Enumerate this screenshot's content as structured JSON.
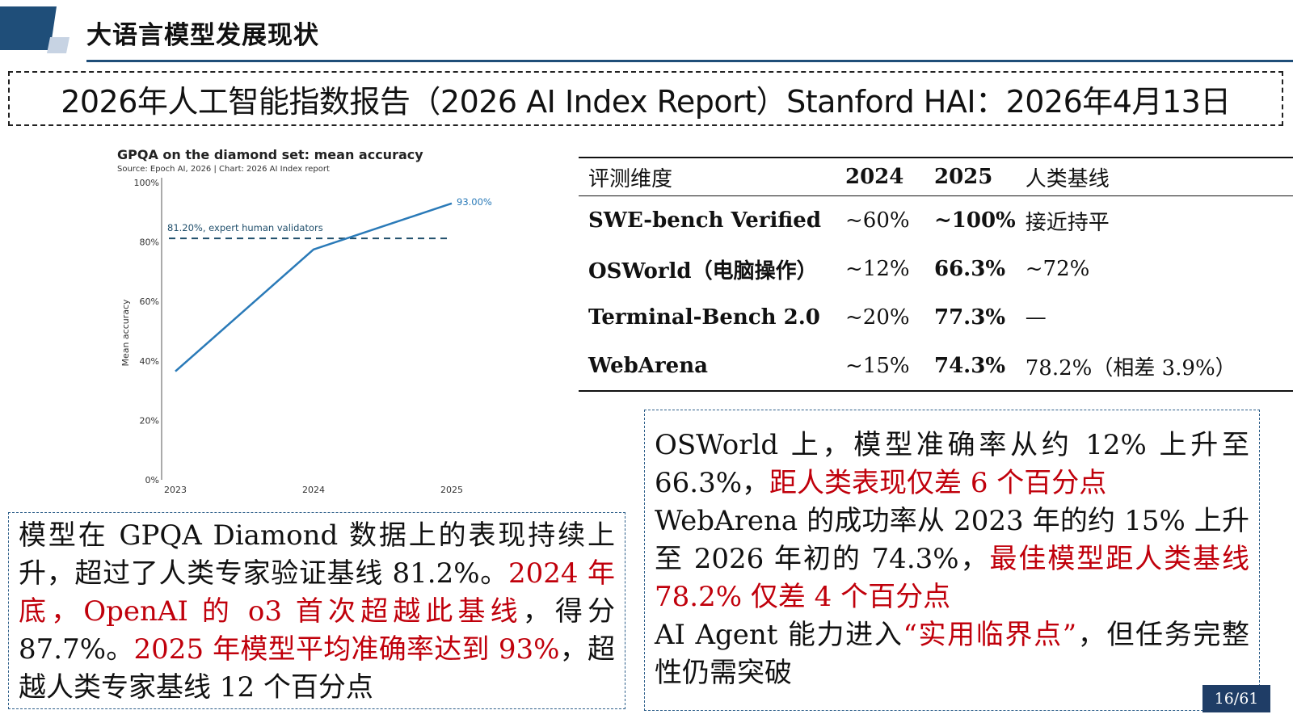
{
  "slide": {
    "title": "大语言模型发展现状",
    "page": "16/61",
    "accent_color": "#1f4e79"
  },
  "banner": {
    "text": "2026年人工智能指数报告（2026 AI Index Report）Stanford HAI：2026年4月13日"
  },
  "chart_data": {
    "type": "line",
    "title": "GPQA on the diamond set: mean accuracy",
    "subtitle": "Source: Epoch AI, 2026 | Chart: 2026 AI Index report",
    "ylabel": "Mean accuracy",
    "xlabel": "",
    "x": [
      "2023",
      "2024",
      "2025"
    ],
    "ylim": [
      0,
      100
    ],
    "yticks": [
      "0%",
      "20%",
      "40%",
      "60%",
      "80%",
      "100%"
    ],
    "series": [
      {
        "values": [
          36.5,
          77.5,
          93.0
        ],
        "color": "#2a7ab8"
      }
    ],
    "end_label": "93.00%",
    "reference": {
      "value": 81.2,
      "label": "81.20%, expert human validators",
      "color": "#1f4e6b"
    },
    "grid": false
  },
  "table": {
    "headers": [
      "评测维度",
      "2024",
      "2025",
      "人类基线"
    ],
    "rows": [
      [
        "SWE-bench Verified",
        "~60%",
        "~100%",
        "接近持平"
      ],
      [
        "OSWorld（电脑操作）",
        "~12%",
        "66.3%",
        "~72%"
      ],
      [
        "Terminal-Bench 2.0",
        "~20%",
        "77.3%",
        "—"
      ],
      [
        "WebArena",
        "~15%",
        "74.3%",
        "78.2%（相差 3.9%）"
      ]
    ]
  },
  "left_note": {
    "p1": "模型在 GPQA Diamond 数据上的表现持续上升，超过了人类专家验证基线 81.2%。",
    "p2_red": "2024 年底，OpenAI 的 o3 首次超越此基线",
    "p3": "，得分 87.7%。",
    "p4_red": "2025 年模型平均准确率达到 93%",
    "p5": "，超越人类专家基线 12 个百分点"
  },
  "right_note": {
    "a1": "OSWorld 上，模型准确率从约 12% 上升至 66.3%，",
    "a2_red": "距人类表现仅差 6 个百分点",
    "b1": "WebArena 的成功率从 2023 年的约 15% 上升至 2026 年初的 74.3%，",
    "b2_red": "最佳模型距人类基线 78.2% 仅差 4 个百分点",
    "c1": "AI Agent 能力进入",
    "c2_red": "“实用临界点”",
    "c3": "，但任务完整性仍需突破",
    "red_color": "#c0000b"
  }
}
